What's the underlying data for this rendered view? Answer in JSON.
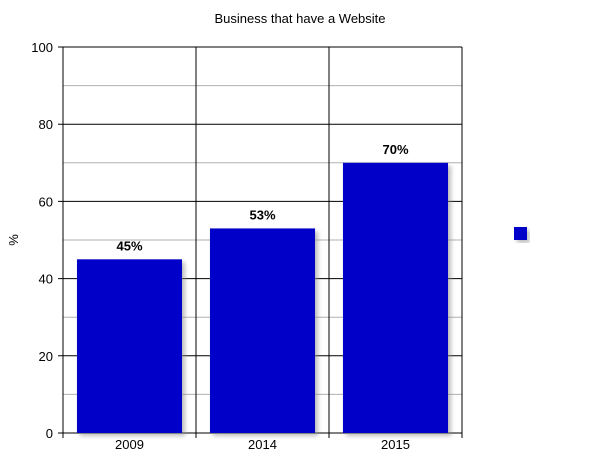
{
  "chart_data": {
    "type": "bar",
    "title": "Business that have a Website",
    "xlabel": "",
    "ylabel": "%",
    "categories": [
      "2009",
      "2014",
      "2015"
    ],
    "values": [
      45,
      53,
      70
    ],
    "data_labels": [
      "45%",
      "53%",
      "70%"
    ],
    "ylim": [
      0,
      100
    ],
    "yticks": [
      0,
      20,
      40,
      60,
      80,
      100
    ],
    "grid": true,
    "legend_placement": "right",
    "bar_color": "#0000C8"
  }
}
